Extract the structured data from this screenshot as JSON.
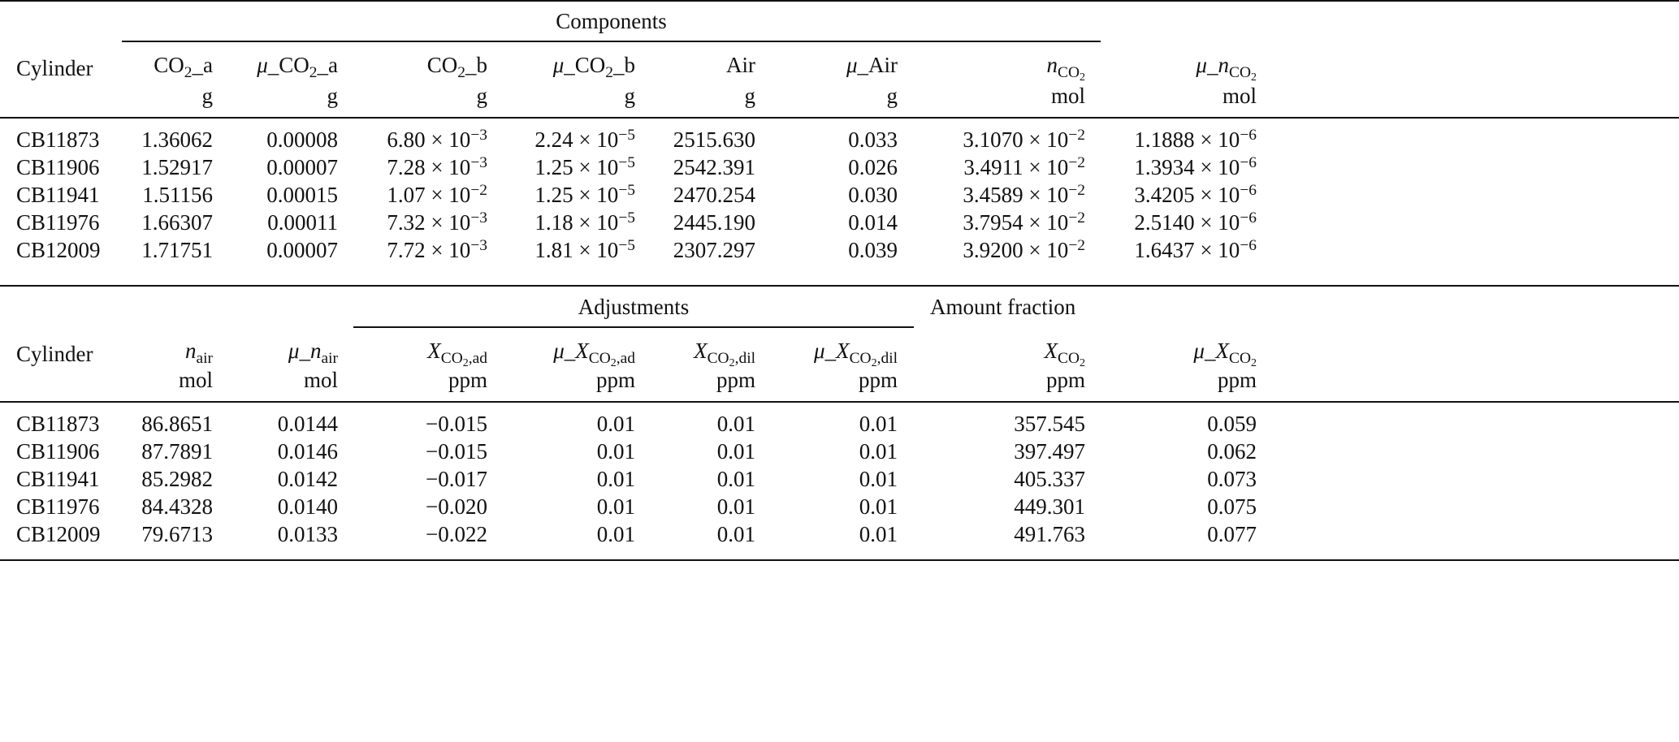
{
  "table1": {
    "group_label": "Components",
    "headers": [
      {
        "text": "Cylinder"
      },
      {
        "text": "CO2_a",
        "unit": "g"
      },
      {
        "text": "μ_CO2_a",
        "unit": "g"
      },
      {
        "text": "CO2_b",
        "unit": "g"
      },
      {
        "text": "μ_CO2_b",
        "unit": "g"
      },
      {
        "text": "Air",
        "unit": "g"
      },
      {
        "text": "μ_Air",
        "unit": "g"
      },
      {
        "prefix": "",
        "sym": "n",
        "sub": "CO2",
        "unit": "mol"
      },
      {
        "prefix": "μ_",
        "sym": "n",
        "sub": "CO2",
        "unit": "mol"
      }
    ],
    "rows": [
      [
        "CB11873",
        "1.36062",
        "0.00008",
        "6.80 × 10^−3",
        "2.24 × 10^−5",
        "2515.630",
        "0.033",
        "3.1070 × 10^−2",
        "1.1888 × 10^−6"
      ],
      [
        "CB11906",
        "1.52917",
        "0.00007",
        "7.28 × 10^−3",
        "1.25 × 10^−5",
        "2542.391",
        "0.026",
        "3.4911 × 10^−2",
        "1.3934 × 10^−6"
      ],
      [
        "CB11941",
        "1.51156",
        "0.00015",
        "1.07 × 10^−2",
        "1.25 × 10^−5",
        "2470.254",
        "0.030",
        "3.4589 × 10^−2",
        "3.4205 × 10^−6"
      ],
      [
        "CB11976",
        "1.66307",
        "0.00011",
        "7.32 × 10^−3",
        "1.18 × 10^−5",
        "2445.190",
        "0.014",
        "3.7954 × 10^−2",
        "2.5140 × 10^−6"
      ],
      [
        "CB12009",
        "1.71751",
        "0.00007",
        "7.72 × 10^−3",
        "1.81 × 10^−5",
        "2307.297",
        "0.039",
        "3.9200 × 10^−2",
        "1.6437 × 10^−6"
      ]
    ]
  },
  "table2": {
    "group_label": "Adjustments",
    "group_label_2": "Amount fraction",
    "headers": [
      {
        "text": "Cylinder"
      },
      {
        "prefix": "",
        "sym": "n",
        "sub": "air",
        "unit": "mol"
      },
      {
        "prefix": "μ_",
        "sym": "n",
        "sub": "air",
        "unit": "mol"
      },
      {
        "prefix": "",
        "sym": "X",
        "sub": "CO2,ad",
        "unit": "ppm"
      },
      {
        "prefix": "μ_",
        "sym": "X",
        "sub": "CO2,ad",
        "unit": "ppm"
      },
      {
        "prefix": "",
        "sym": "X",
        "sub": "CO2,dil",
        "unit": "ppm"
      },
      {
        "prefix": "μ_",
        "sym": "X",
        "sub": "CO2,dil",
        "unit": "ppm"
      },
      {
        "prefix": "",
        "sym": "X",
        "sub": "CO2",
        "unit": "ppm"
      },
      {
        "prefix": "μ_",
        "sym": "X",
        "sub": "CO2",
        "unit": "ppm"
      }
    ],
    "rows": [
      [
        "CB11873",
        "86.8651",
        "0.0144",
        "−0.015",
        "0.01",
        "0.01",
        "0.01",
        "357.545",
        "0.059"
      ],
      [
        "CB11906",
        "87.7891",
        "0.0146",
        "−0.015",
        "0.01",
        "0.01",
        "0.01",
        "397.497",
        "0.062"
      ],
      [
        "CB11941",
        "85.2982",
        "0.0142",
        "−0.017",
        "0.01",
        "0.01",
        "0.01",
        "405.337",
        "0.073"
      ],
      [
        "CB11976",
        "84.4328",
        "0.0140",
        "−0.020",
        "0.01",
        "0.01",
        "0.01",
        "449.301",
        "0.075"
      ],
      [
        "CB12009",
        "79.6713",
        "0.0133",
        "−0.022",
        "0.01",
        "0.01",
        "0.01",
        "491.763",
        "0.077"
      ]
    ]
  }
}
